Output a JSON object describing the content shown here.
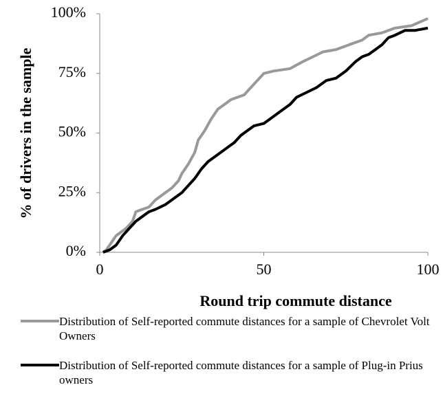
{
  "chart_data": {
    "type": "line",
    "xlabel": "Round trip commute distance",
    "ylabel": "% of drivers in the sample",
    "xlim": [
      0,
      100
    ],
    "ylim": [
      0,
      100
    ],
    "xticks": [
      0,
      50,
      100
    ],
    "yticks": [
      {
        "value": 0,
        "label": "0%"
      },
      {
        "value": 25,
        "label": "25%"
      },
      {
        "value": 50,
        "label": "50%"
      },
      {
        "value": 75,
        "label": "75%"
      },
      {
        "value": 100,
        "label": "100%"
      }
    ],
    "grid": false,
    "legend": "bottom",
    "series": [
      {
        "name": "Distribution of Self-reported commute distances for a sample of Chevrolet Volt Owners",
        "color": "#999999",
        "x": [
          1,
          2,
          3,
          4,
          5,
          6,
          8,
          10,
          11,
          13,
          15,
          17,
          20,
          22,
          24,
          25,
          27,
          29,
          30,
          32,
          34,
          36,
          38,
          40,
          44,
          46,
          48,
          50,
          53,
          58,
          62,
          65,
          68,
          72,
          76,
          80,
          82,
          86,
          90,
          95,
          100
        ],
        "values": [
          0,
          1,
          3,
          5,
          7,
          8,
          10,
          13,
          17,
          18,
          19,
          22,
          25,
          27,
          30,
          33,
          37,
          42,
          47,
          51,
          56,
          60,
          62,
          64,
          66,
          69,
          72,
          75,
          76,
          77,
          80,
          82,
          84,
          85,
          87,
          89,
          91,
          92,
          94,
          95,
          98
        ]
      },
      {
        "name": "Distribution of Self-reported commute distances for a sample of Plug-in Prius owners",
        "color": "#000000",
        "x": [
          1,
          3,
          5,
          7,
          9,
          11,
          13,
          15,
          17,
          20,
          22,
          25,
          27,
          29,
          31,
          33,
          35,
          37,
          39,
          41,
          43,
          45,
          47,
          50,
          53,
          56,
          58,
          60,
          63,
          66,
          69,
          72,
          75,
          78,
          80,
          82,
          84,
          86,
          88,
          90,
          93,
          96,
          100
        ],
        "values": [
          0,
          1,
          3,
          7,
          10,
          13,
          15,
          17,
          18,
          20,
          22,
          25,
          28,
          31,
          35,
          38,
          40,
          42,
          44,
          46,
          49,
          51,
          53,
          54,
          57,
          60,
          62,
          65,
          67,
          69,
          72,
          73,
          76,
          80,
          82,
          83,
          85,
          87,
          90,
          91,
          93,
          93,
          94
        ]
      }
    ]
  }
}
